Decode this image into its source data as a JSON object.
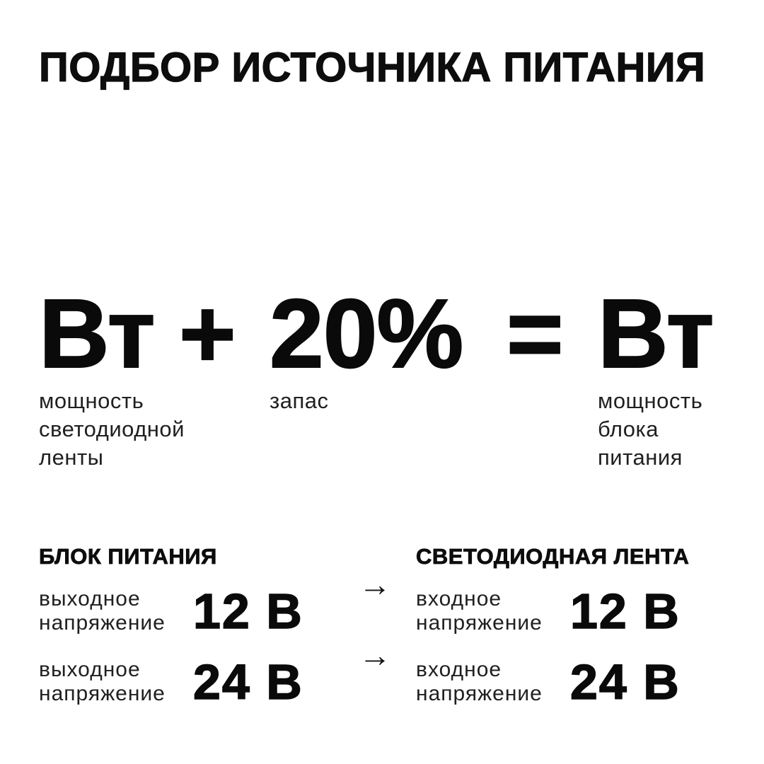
{
  "colors": {
    "background": "#ffffff",
    "heading_text": "#0d0d0d",
    "body_text": "#202020"
  },
  "title": "ПОДБОР ИСТОЧНИКА ПИТАНИЯ",
  "formula": {
    "strip_power": {
      "value": "Вт",
      "label_lines": [
        "мощность",
        "светодиодной",
        "ленты"
      ]
    },
    "plus_sign": "+",
    "reserve": {
      "value": "20%",
      "label_lines": [
        "запас"
      ]
    },
    "equals_sign": "=",
    "psu_power": {
      "value": "Вт",
      "label_lines": [
        "мощность",
        "блока",
        "питания"
      ]
    }
  },
  "voltage_match": {
    "arrow": "→",
    "psu": {
      "header": "БЛОК ПИТАНИЯ",
      "rows": [
        {
          "label_lines": [
            "выходное",
            "напряжение"
          ],
          "value": "12 В"
        },
        {
          "label_lines": [
            "выходное",
            "напряжение"
          ],
          "value": "24 В"
        }
      ]
    },
    "led_strip": {
      "header": "СВЕТОДИОДНАЯ ЛЕНТА",
      "rows": [
        {
          "label_lines": [
            "входное",
            "напряжение"
          ],
          "value": "12 В"
        },
        {
          "label_lines": [
            "входное",
            "напряжение"
          ],
          "value": "24 В"
        }
      ]
    }
  }
}
